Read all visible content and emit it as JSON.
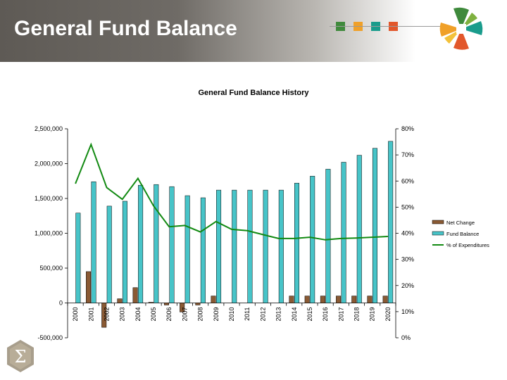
{
  "slide": {
    "title": "General Fund Balance"
  },
  "decor": {
    "square_colors": [
      "#3f8a3c",
      "#f0a028",
      "#1a9c8c",
      "#e2572b"
    ],
    "logo_icon": "pinwheel-logo-icon",
    "corner_icon": "sigma-icon"
  },
  "colors": {
    "net_change": "#8a5a34",
    "fund_balance": "#47c4c8",
    "pct_expenditures": "#128a12"
  },
  "chart_data": {
    "type": "bar",
    "title": "General Fund Balance History",
    "categories": [
      "2000",
      "2001",
      "2002",
      "2003",
      "2004",
      "2005",
      "2006",
      "2007",
      "2008",
      "2009",
      "2010",
      "2011",
      "2012",
      "2013",
      "2014",
      "2015",
      "2016",
      "2017",
      "2018",
      "2019",
      "2020"
    ],
    "series": [
      {
        "name": "Net Change",
        "type": "bar",
        "axis": "left",
        "values": [
          0,
          450000,
          -350000,
          60000,
          220000,
          10000,
          -30000,
          -130000,
          -30000,
          100000,
          0,
          0,
          0,
          0,
          100000,
          100000,
          100000,
          100000,
          100000,
          100000,
          100000
        ]
      },
      {
        "name": "Fund Balance",
        "type": "bar",
        "axis": "left",
        "values": [
          1290000,
          1740000,
          1390000,
          1460000,
          1690000,
          1700000,
          1670000,
          1540000,
          1510000,
          1620000,
          1620000,
          1620000,
          1620000,
          1620000,
          1720000,
          1820000,
          1920000,
          2020000,
          2120000,
          2220000,
          2320000
        ]
      },
      {
        "name": "% of Expenditures",
        "type": "line",
        "axis": "right",
        "values": [
          59,
          74,
          57.5,
          53,
          61,
          50.5,
          42.5,
          43,
          40.5,
          44.5,
          41.5,
          41,
          39.5,
          38,
          38,
          38.5,
          37.5,
          38,
          38.2,
          38.5,
          38.8
        ]
      }
    ],
    "y_left": {
      "min": -500000,
      "max": 2500000,
      "ticks": [
        "-500,000",
        "0",
        "500,000",
        "1,000,000",
        "1,500,000",
        "2,000,000",
        "2,500,000"
      ],
      "tick_values": [
        -500000,
        0,
        500000,
        1000000,
        1500000,
        2000000,
        2500000
      ]
    },
    "y_right": {
      "min": 0,
      "max": 80,
      "ticks": [
        "0%",
        "10%",
        "20%",
        "30%",
        "40%",
        "50%",
        "60%",
        "70%",
        "80%"
      ],
      "tick_values": [
        0,
        10,
        20,
        30,
        40,
        50,
        60,
        70,
        80
      ]
    },
    "xlabel": "",
    "ylabel": "",
    "grid": false,
    "legend": "right"
  }
}
